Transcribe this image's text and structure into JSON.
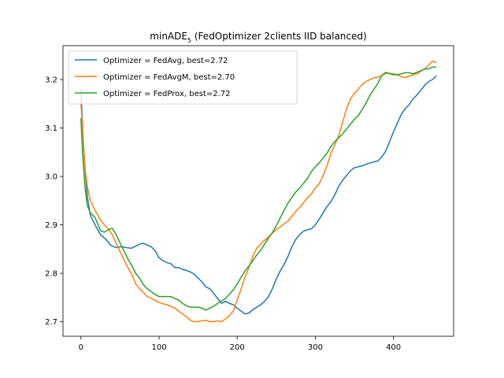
{
  "chart_data": {
    "type": "line",
    "title": "minADE",
    "title_subscript": "5",
    "title_rest": " (FedOptimizer 2clients IID balanced)",
    "xlabel": "",
    "ylabel": "",
    "xlim": [
      -23,
      477
    ],
    "ylim": [
      2.67,
      3.27
    ],
    "x_ticks": [
      0,
      100,
      200,
      300,
      400
    ],
    "y_ticks": [
      2.7,
      2.8,
      2.9,
      3.0,
      3.1,
      3.2
    ],
    "x_tick_labels": [
      "0",
      "100",
      "200",
      "300",
      "400"
    ],
    "y_tick_labels": [
      "2.7",
      "2.8",
      "2.9",
      "3.0",
      "3.1",
      "3.2"
    ],
    "grid": false,
    "legend_position": "upper-left",
    "series": [
      {
        "name": "Optimizer = FedAvg, best=2.72",
        "color": "#1f77b4",
        "points": [
          [
            0,
            3.18
          ],
          [
            2,
            3.1
          ],
          [
            5,
            3.02
          ],
          [
            8,
            2.96
          ],
          [
            12,
            2.92
          ],
          [
            18,
            2.9
          ],
          [
            25,
            2.88
          ],
          [
            32,
            2.87
          ],
          [
            38,
            2.858
          ],
          [
            45,
            2.853
          ],
          [
            52,
            2.855
          ],
          [
            58,
            2.853
          ],
          [
            65,
            2.852
          ],
          [
            70,
            2.856
          ],
          [
            75,
            2.86
          ],
          [
            80,
            2.862
          ],
          [
            85,
            2.858
          ],
          [
            90,
            2.855
          ],
          [
            95,
            2.846
          ],
          [
            100,
            2.832
          ],
          [
            105,
            2.826
          ],
          [
            110,
            2.822
          ],
          [
            115,
            2.82
          ],
          [
            120,
            2.812
          ],
          [
            125,
            2.812
          ],
          [
            130,
            2.808
          ],
          [
            135,
            2.806
          ],
          [
            140,
            2.803
          ],
          [
            145,
            2.798
          ],
          [
            150,
            2.79
          ],
          [
            155,
            2.782
          ],
          [
            160,
            2.772
          ],
          [
            165,
            2.768
          ],
          [
            170,
            2.758
          ],
          [
            175,
            2.748
          ],
          [
            180,
            2.738
          ],
          [
            185,
            2.742
          ],
          [
            190,
            2.738
          ],
          [
            195,
            2.735
          ],
          [
            200,
            2.728
          ],
          [
            205,
            2.722
          ],
          [
            210,
            2.716
          ],
          [
            215,
            2.718
          ],
          [
            220,
            2.725
          ],
          [
            225,
            2.73
          ],
          [
            230,
            2.735
          ],
          [
            235,
            2.742
          ],
          [
            240,
            2.752
          ],
          [
            245,
            2.768
          ],
          [
            250,
            2.788
          ],
          [
            255,
            2.805
          ],
          [
            260,
            2.818
          ],
          [
            265,
            2.835
          ],
          [
            270,
            2.855
          ],
          [
            275,
            2.87
          ],
          [
            280,
            2.88
          ],
          [
            285,
            2.887
          ],
          [
            290,
            2.89
          ],
          [
            295,
            2.892
          ],
          [
            300,
            2.9
          ],
          [
            305,
            2.912
          ],
          [
            310,
            2.925
          ],
          [
            315,
            2.938
          ],
          [
            320,
            2.948
          ],
          [
            325,
            2.962
          ],
          [
            330,
            2.98
          ],
          [
            335,
            2.992
          ],
          [
            340,
            3.002
          ],
          [
            345,
            3.012
          ],
          [
            350,
            3.018
          ],
          [
            355,
            3.02
          ],
          [
            360,
            3.022
          ],
          [
            365,
            3.025
          ],
          [
            370,
            3.028
          ],
          [
            375,
            3.03
          ],
          [
            380,
            3.032
          ],
          [
            385,
            3.04
          ],
          [
            390,
            3.052
          ],
          [
            395,
            3.072
          ],
          [
            400,
            3.092
          ],
          [
            405,
            3.11
          ],
          [
            410,
            3.128
          ],
          [
            415,
            3.14
          ],
          [
            420,
            3.148
          ],
          [
            425,
            3.16
          ],
          [
            430,
            3.168
          ],
          [
            435,
            3.178
          ],
          [
            440,
            3.188
          ],
          [
            445,
            3.196
          ],
          [
            450,
            3.2
          ],
          [
            455,
            3.208
          ]
        ]
      },
      {
        "name": "Optimizer = FedAvgM, best=2.70",
        "color": "#ff7f0e",
        "points": [
          [
            0,
            3.15
          ],
          [
            2,
            3.1
          ],
          [
            5,
            3.02
          ],
          [
            8,
            2.98
          ],
          [
            12,
            2.95
          ],
          [
            18,
            2.93
          ],
          [
            25,
            2.91
          ],
          [
            30,
            2.9
          ],
          [
            35,
            2.892
          ],
          [
            40,
            2.88
          ],
          [
            45,
            2.862
          ],
          [
            50,
            2.845
          ],
          [
            55,
            2.828
          ],
          [
            60,
            2.812
          ],
          [
            65,
            2.798
          ],
          [
            70,
            2.778
          ],
          [
            75,
            2.768
          ],
          [
            80,
            2.76
          ],
          [
            85,
            2.752
          ],
          [
            90,
            2.748
          ],
          [
            95,
            2.744
          ],
          [
            100,
            2.74
          ],
          [
            105,
            2.737
          ],
          [
            110,
            2.735
          ],
          [
            115,
            2.732
          ],
          [
            120,
            2.728
          ],
          [
            125,
            2.722
          ],
          [
            130,
            2.716
          ],
          [
            135,
            2.71
          ],
          [
            140,
            2.703
          ],
          [
            145,
            2.7
          ],
          [
            150,
            2.7
          ],
          [
            155,
            2.702
          ],
          [
            160,
            2.703
          ],
          [
            165,
            2.7
          ],
          [
            170,
            2.7
          ],
          [
            175,
            2.702
          ],
          [
            180,
            2.7
          ],
          [
            185,
            2.706
          ],
          [
            190,
            2.713
          ],
          [
            195,
            2.722
          ],
          [
            200,
            2.745
          ],
          [
            205,
            2.768
          ],
          [
            210,
            2.792
          ],
          [
            215,
            2.812
          ],
          [
            220,
            2.835
          ],
          [
            225,
            2.852
          ],
          [
            230,
            2.86
          ],
          [
            235,
            2.868
          ],
          [
            240,
            2.875
          ],
          [
            245,
            2.883
          ],
          [
            250,
            2.89
          ],
          [
            255,
            2.896
          ],
          [
            260,
            2.902
          ],
          [
            265,
            2.908
          ],
          [
            270,
            2.918
          ],
          [
            275,
            2.928
          ],
          [
            280,
            2.936
          ],
          [
            285,
            2.946
          ],
          [
            290,
            2.956
          ],
          [
            295,
            2.964
          ],
          [
            300,
            2.976
          ],
          [
            305,
            2.985
          ],
          [
            310,
            3.002
          ],
          [
            315,
            3.022
          ],
          [
            320,
            3.048
          ],
          [
            325,
            3.065
          ],
          [
            330,
            3.085
          ],
          [
            335,
            3.112
          ],
          [
            340,
            3.14
          ],
          [
            345,
            3.16
          ],
          [
            350,
            3.172
          ],
          [
            355,
            3.18
          ],
          [
            360,
            3.19
          ],
          [
            365,
            3.196
          ],
          [
            370,
            3.2
          ],
          [
            375,
            3.204
          ],
          [
            380,
            3.205
          ],
          [
            385,
            3.208
          ],
          [
            390,
            3.213
          ],
          [
            395,
            3.213
          ],
          [
            400,
            3.212
          ],
          [
            405,
            3.21
          ],
          [
            410,
            3.206
          ],
          [
            415,
            3.204
          ],
          [
            420,
            3.207
          ],
          [
            425,
            3.21
          ],
          [
            430,
            3.212
          ],
          [
            435,
            3.217
          ],
          [
            440,
            3.222
          ],
          [
            445,
            3.23
          ],
          [
            450,
            3.238
          ],
          [
            455,
            3.235
          ]
        ]
      },
      {
        "name": "Optimizer = FedProx, best=2.72",
        "color": "#2ca02c",
        "points": [
          [
            0,
            3.12
          ],
          [
            2,
            3.05
          ],
          [
            5,
            2.98
          ],
          [
            8,
            2.94
          ],
          [
            12,
            2.925
          ],
          [
            18,
            2.915
          ],
          [
            22,
            2.9
          ],
          [
            25,
            2.888
          ],
          [
            30,
            2.885
          ],
          [
            35,
            2.89
          ],
          [
            40,
            2.893
          ],
          [
            45,
            2.88
          ],
          [
            50,
            2.863
          ],
          [
            55,
            2.846
          ],
          [
            60,
            2.83
          ],
          [
            65,
            2.816
          ],
          [
            70,
            2.8
          ],
          [
            75,
            2.79
          ],
          [
            80,
            2.776
          ],
          [
            85,
            2.768
          ],
          [
            90,
            2.762
          ],
          [
            95,
            2.756
          ],
          [
            100,
            2.752
          ],
          [
            105,
            2.752
          ],
          [
            110,
            2.752
          ],
          [
            115,
            2.752
          ],
          [
            120,
            2.748
          ],
          [
            125,
            2.745
          ],
          [
            130,
            2.738
          ],
          [
            135,
            2.733
          ],
          [
            140,
            2.73
          ],
          [
            145,
            2.73
          ],
          [
            150,
            2.73
          ],
          [
            155,
            2.728
          ],
          [
            160,
            2.724
          ],
          [
            165,
            2.728
          ],
          [
            170,
            2.732
          ],
          [
            175,
            2.738
          ],
          [
            180,
            2.743
          ],
          [
            185,
            2.748
          ],
          [
            190,
            2.757
          ],
          [
            195,
            2.766
          ],
          [
            200,
            2.778
          ],
          [
            205,
            2.792
          ],
          [
            210,
            2.805
          ],
          [
            215,
            2.815
          ],
          [
            220,
            2.826
          ],
          [
            225,
            2.838
          ],
          [
            230,
            2.848
          ],
          [
            235,
            2.86
          ],
          [
            240,
            2.873
          ],
          [
            245,
            2.884
          ],
          [
            250,
            2.898
          ],
          [
            255,
            2.914
          ],
          [
            260,
            2.93
          ],
          [
            265,
            2.945
          ],
          [
            270,
            2.957
          ],
          [
            275,
            2.968
          ],
          [
            280,
            2.976
          ],
          [
            285,
            2.986
          ],
          [
            290,
            2.996
          ],
          [
            295,
            3.01
          ],
          [
            300,
            3.02
          ],
          [
            305,
            3.028
          ],
          [
            310,
            3.038
          ],
          [
            315,
            3.048
          ],
          [
            320,
            3.062
          ],
          [
            325,
            3.072
          ],
          [
            330,
            3.08
          ],
          [
            335,
            3.088
          ],
          [
            340,
            3.098
          ],
          [
            345,
            3.108
          ],
          [
            350,
            3.118
          ],
          [
            355,
            3.126
          ],
          [
            360,
            3.138
          ],
          [
            365,
            3.152
          ],
          [
            370,
            3.168
          ],
          [
            375,
            3.18
          ],
          [
            380,
            3.192
          ],
          [
            385,
            3.208
          ],
          [
            390,
            3.215
          ],
          [
            395,
            3.212
          ],
          [
            400,
            3.21
          ],
          [
            405,
            3.21
          ],
          [
            410,
            3.212
          ],
          [
            415,
            3.214
          ],
          [
            420,
            3.214
          ],
          [
            425,
            3.212
          ],
          [
            430,
            3.215
          ],
          [
            435,
            3.218
          ],
          [
            440,
            3.222
          ],
          [
            445,
            3.222
          ],
          [
            450,
            3.226
          ],
          [
            455,
            3.226
          ]
        ]
      }
    ]
  }
}
